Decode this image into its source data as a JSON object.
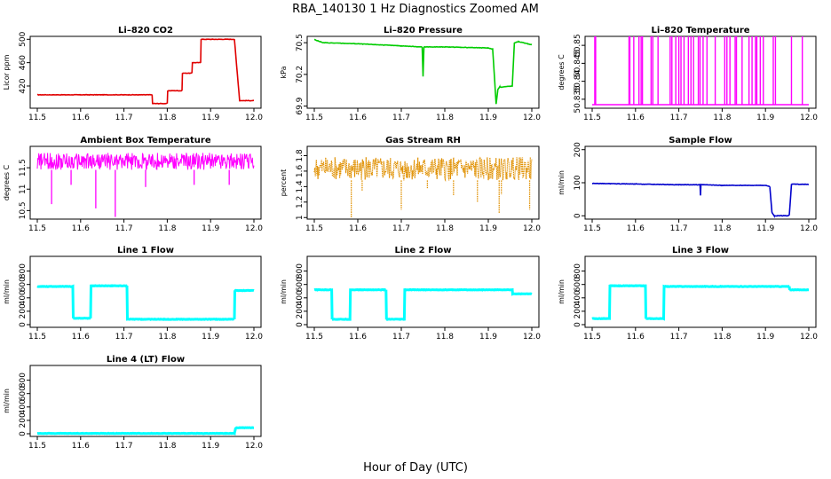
{
  "title": "RBA_140130  1 Hz Diagnostics Zoomed AM",
  "xlabel": "Hour of Day (UTC)",
  "colors": {
    "co2": "#e00000",
    "pressure": "#00cc00",
    "temperature": "#ff00ff",
    "ambient": "#ff00ff",
    "rh": "#e09000",
    "sample_flow": "#0000cc",
    "line_flow": "#00ffff"
  },
  "chart_data": [
    {
      "type": "line",
      "title": "Li–820 CO2",
      "ylabel": "Licor ppm",
      "color_key": "co2",
      "xlim": [
        11.5,
        12.0
      ],
      "ylim": [
        382,
        505
      ],
      "xticks": [
        "11.5",
        "11.6",
        "11.7",
        "11.8",
        "11.9",
        "12.0"
      ],
      "yticks": [
        380,
        420,
        460,
        500
      ],
      "x": [
        11.5,
        11.765,
        11.766,
        11.8,
        11.801,
        11.834,
        11.835,
        11.857,
        11.858,
        11.877,
        11.878,
        11.955,
        11.967,
        12.0
      ],
      "y": [
        405,
        405,
        390,
        390,
        412,
        412,
        442,
        442,
        460,
        460,
        500,
        500,
        395,
        395
      ]
    },
    {
      "type": "line",
      "title": "Li–820 Pressure",
      "ylabel": "kPa",
      "color_key": "pressure",
      "xlim": [
        11.5,
        12.0
      ],
      "ylim": [
        69.88,
        70.56
      ],
      "xticks": [
        "11.5",
        "11.6",
        "11.7",
        "11.8",
        "11.9",
        "12.0"
      ],
      "yticks": [
        69.9,
        70.2,
        70.5
      ],
      "x": [
        11.5,
        11.52,
        11.6,
        11.7,
        11.748,
        11.75,
        11.752,
        11.8,
        11.9,
        11.91,
        11.918,
        11.922,
        11.926,
        11.93,
        11.955,
        11.96,
        11.97,
        11.99,
        12.0
      ],
      "y": [
        70.53,
        70.5,
        70.49,
        70.47,
        70.46,
        70.18,
        70.46,
        70.46,
        70.45,
        70.44,
        69.92,
        70.06,
        70.08,
        70.08,
        70.09,
        70.5,
        70.51,
        70.49,
        70.48
      ]
    },
    {
      "type": "line",
      "title": "Li–820 Temperature",
      "ylabel": "degrees C",
      "color_key": "temperature",
      "xlim": [
        11.5,
        12.0
      ],
      "ylim": [
        50.8325,
        50.8525
      ],
      "xticks": [
        "11.5",
        "11.6",
        "11.7",
        "11.8",
        "11.9",
        "12.0"
      ],
      "yticks": [
        50.835,
        50.84,
        50.845,
        50.85
      ],
      "baseline": 50.8335,
      "high": 50.8525,
      "spikes": [
        11.506,
        11.508,
        11.585,
        11.587,
        11.596,
        11.608,
        11.613,
        11.616,
        11.636,
        11.64,
        11.652,
        11.68,
        11.684,
        11.693,
        11.7,
        11.705,
        11.712,
        11.722,
        11.728,
        11.734,
        11.745,
        11.749,
        11.756,
        11.765,
        11.784,
        11.806,
        11.811,
        11.818,
        11.83,
        11.833,
        11.846,
        11.862,
        11.869,
        11.877,
        11.88,
        11.888,
        11.895,
        11.918,
        11.923,
        11.96,
        11.985
      ]
    },
    {
      "type": "line",
      "title": "Ambient Box Temperature",
      "ylabel": "degrees C",
      "color_key": "ambient",
      "xlim": [
        11.5,
        12.0
      ],
      "ylim": [
        10.3,
        12.0
      ],
      "xticks": [
        "11.5",
        "11.6",
        "11.7",
        "11.8",
        "11.9",
        "12.0"
      ],
      "yticks": [
        10.5,
        11.0,
        11.5
      ],
      "band": [
        11.45,
        11.85
      ],
      "mean": 11.62,
      "dips": [
        [
          11.533,
          10.65
        ],
        [
          11.635,
          10.55
        ],
        [
          11.68,
          10.35
        ],
        [
          11.75,
          11.05
        ],
        [
          11.578,
          11.1
        ],
        [
          11.862,
          11.1
        ],
        [
          11.943,
          11.1
        ]
      ]
    },
    {
      "type": "scatter",
      "title": "Gas Stream RH",
      "ylabel": "percent",
      "color_key": "rh",
      "xlim": [
        11.5,
        12.0
      ],
      "ylim": [
        0.98,
        1.92
      ],
      "xticks": [
        "11.5",
        "11.6",
        "11.7",
        "11.8",
        "11.9",
        "12.0"
      ],
      "yticks": [
        1.0,
        1.2,
        1.4,
        1.6,
        1.8
      ],
      "band": [
        1.48,
        1.78
      ],
      "dips": [
        [
          11.585,
          1.0
        ],
        [
          11.7,
          1.1
        ],
        [
          11.82,
          1.28
        ],
        [
          11.875,
          1.2
        ],
        [
          11.925,
          1.05
        ],
        [
          11.61,
          1.35
        ],
        [
          11.93,
          1.3
        ],
        [
          11.995,
          1.1
        ],
        [
          11.76,
          1.38
        ]
      ]
    },
    {
      "type": "line",
      "title": "Sample Flow",
      "ylabel": "ml/min",
      "color_key": "sample_flow",
      "xlim": [
        11.5,
        12.0
      ],
      "ylim": [
        -10,
        210
      ],
      "xticks": [
        "11.5",
        "11.6",
        "11.7",
        "11.8",
        "11.9",
        "12.0"
      ],
      "yticks": [
        0,
        100,
        200
      ],
      "x": [
        11.5,
        11.6,
        11.7,
        11.749,
        11.75,
        11.751,
        11.8,
        11.9,
        11.91,
        11.915,
        11.92,
        11.95,
        11.955,
        11.96,
        12.0
      ],
      "y": [
        98,
        96,
        94,
        94,
        62,
        94,
        92,
        92,
        88,
        10,
        0,
        0,
        2,
        96,
        95
      ]
    },
    {
      "type": "line",
      "title": "Line 1 Flow",
      "ylabel": "ml/min",
      "color_key": "line_flow",
      "xlim": [
        11.5,
        12.0
      ],
      "ylim": [
        -40,
        1020
      ],
      "xticks": [
        "11.5",
        "11.6",
        "11.7",
        "11.8",
        "11.9",
        "12.0"
      ],
      "yticks": [
        0,
        200,
        400,
        600,
        800
      ],
      "x": [
        11.5,
        11.582,
        11.583,
        11.623,
        11.624,
        11.707,
        11.708,
        11.955,
        11.956,
        12.0
      ],
      "y": [
        570,
        570,
        95,
        95,
        580,
        580,
        80,
        80,
        510,
        510
      ]
    },
    {
      "type": "line",
      "title": "Line 2 Flow",
      "ylabel": "ml/min",
      "color_key": "line_flow",
      "xlim": [
        11.5,
        12.0
      ],
      "ylim": [
        -40,
        1020
      ],
      "xticks": [
        "11.5",
        "11.6",
        "11.7",
        "11.8",
        "11.9",
        "12.0"
      ],
      "yticks": [
        0,
        200,
        400,
        600,
        800
      ],
      "x": [
        11.5,
        11.54,
        11.541,
        11.582,
        11.583,
        11.665,
        11.666,
        11.707,
        11.708,
        11.955,
        11.956,
        12.0
      ],
      "y": [
        520,
        520,
        80,
        80,
        520,
        520,
        80,
        80,
        520,
        520,
        460,
        460
      ]
    },
    {
      "type": "line",
      "title": "Line 3 Flow",
      "ylabel": "ml/min",
      "color_key": "line_flow",
      "xlim": [
        11.5,
        12.0
      ],
      "ylim": [
        -40,
        1020
      ],
      "xticks": [
        "11.5",
        "11.6",
        "11.7",
        "11.8",
        "11.9",
        "12.0"
      ],
      "yticks": [
        0,
        200,
        400,
        600,
        800
      ],
      "x": [
        11.5,
        11.54,
        11.541,
        11.623,
        11.624,
        11.665,
        11.666,
        11.955,
        11.956,
        12.0
      ],
      "y": [
        90,
        90,
        580,
        580,
        90,
        90,
        570,
        570,
        520,
        520
      ]
    },
    {
      "type": "line",
      "title": "Line 4 (LT) Flow",
      "ylabel": "ml/min",
      "color_key": "line_flow",
      "xlim": [
        11.5,
        12.0
      ],
      "ylim": [
        -40,
        1020
      ],
      "xticks": [
        "11.5",
        "11.6",
        "11.7",
        "11.8",
        "11.9",
        "12.0"
      ],
      "yticks": [
        0,
        200,
        400,
        600,
        800
      ],
      "x": [
        11.5,
        11.955,
        11.958,
        12.0
      ],
      "y": [
        5,
        5,
        90,
        90
      ]
    }
  ]
}
